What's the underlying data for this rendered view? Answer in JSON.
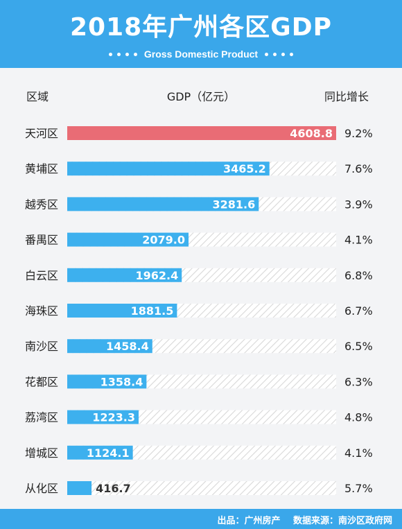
{
  "header": {
    "title": "2018年广州各区GDP",
    "subtitle": "Gross Domestic Product"
  },
  "columns": {
    "region": "区域",
    "gdp": "GDP（亿元）",
    "growth": "同比增长"
  },
  "colors": {
    "header": "#3aa7ea",
    "bar": "#3db0ee",
    "highlight_bar": "#e96c75",
    "stripe": "#d8d8d8"
  },
  "chart_data": {
    "type": "bar",
    "orientation": "horizontal",
    "categories": [
      "天河区",
      "黄埔区",
      "越秀区",
      "番禺区",
      "白云区",
      "海珠区",
      "南沙区",
      "花都区",
      "荔湾区",
      "增城区",
      "从化区"
    ],
    "values": [
      4608.8,
      3465.2,
      3281.6,
      2079.0,
      1962.4,
      1881.5,
      1458.4,
      1358.4,
      1223.3,
      1124.1,
      416.7
    ],
    "value_labels": [
      "4608.8",
      "3465.2",
      "3281.6",
      "2079.0",
      "1962.4",
      "1881.5",
      "1458.4",
      "1358.4",
      "1223.3",
      "1124.1",
      "416.7"
    ],
    "growth": [
      "9.2%",
      "7.6%",
      "3.9%",
      "4.1%",
      "6.8%",
      "6.7%",
      "6.5%",
      "6.3%",
      "4.8%",
      "4.1%",
      "5.7%"
    ],
    "highlight_index": 0,
    "xlim": [
      0,
      4608.8
    ]
  },
  "footer": {
    "source": "出品：广州房产",
    "data_source": "数据来源：南沙区政府网"
  }
}
